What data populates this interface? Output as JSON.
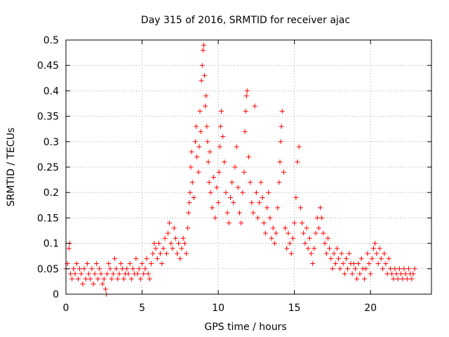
{
  "chart_data": {
    "type": "scatter",
    "title": "Day 315 of 2016, SRMTID for receiver ajac",
    "xlabel": "GPS time / hours",
    "ylabel": "SRMTID / TECUs",
    "xlim": [
      0,
      24
    ],
    "ylim": [
      0,
      0.5
    ],
    "x_ticks": [
      0,
      5,
      10,
      15,
      20
    ],
    "x_tick_labels": [
      "0",
      "5",
      "10",
      "15",
      "20"
    ],
    "y_ticks": [
      0,
      0.05,
      0.1,
      0.15,
      0.2,
      0.25,
      0.3,
      0.35,
      0.4,
      0.45,
      0.5
    ],
    "y_tick_labels": [
      "0",
      "0.05",
      "0.1",
      "0.15",
      "0.2",
      "0.25",
      "0.3",
      "0.35",
      "0.4",
      "0.45",
      "0.5"
    ],
    "grid": true,
    "marker": "+",
    "marker_color": "#ff0000",
    "series": [
      {
        "name": "SRMTID",
        "points": [
          [
            0.0,
            0.05
          ],
          [
            0.1,
            0.06
          ],
          [
            0.2,
            0.09
          ],
          [
            0.25,
            0.1
          ],
          [
            0.3,
            0.04
          ],
          [
            0.4,
            0.03
          ],
          [
            0.5,
            0.05
          ],
          [
            0.6,
            0.04
          ],
          [
            0.7,
            0.06
          ],
          [
            0.8,
            0.03
          ],
          [
            0.9,
            0.05
          ],
          [
            1.0,
            0.04
          ],
          [
            1.1,
            0.02
          ],
          [
            1.2,
            0.05
          ],
          [
            1.3,
            0.03
          ],
          [
            1.4,
            0.06
          ],
          [
            1.5,
            0.04
          ],
          [
            1.6,
            0.03
          ],
          [
            1.7,
            0.05
          ],
          [
            1.8,
            0.02
          ],
          [
            1.9,
            0.04
          ],
          [
            2.0,
            0.06
          ],
          [
            2.1,
            0.03
          ],
          [
            2.2,
            0.05
          ],
          [
            2.3,
            0.04
          ],
          [
            2.4,
            0.02
          ],
          [
            2.5,
            0.03
          ],
          [
            2.6,
            0.01
          ],
          [
            2.65,
            0.0
          ],
          [
            2.7,
            0.04
          ],
          [
            2.8,
            0.06
          ],
          [
            2.9,
            0.05
          ],
          [
            3.0,
            0.03
          ],
          [
            3.1,
            0.04
          ],
          [
            3.2,
            0.07
          ],
          [
            3.3,
            0.05
          ],
          [
            3.4,
            0.03
          ],
          [
            3.5,
            0.04
          ],
          [
            3.6,
            0.06
          ],
          [
            3.7,
            0.05
          ],
          [
            3.8,
            0.03
          ],
          [
            3.9,
            0.04
          ],
          [
            4.0,
            0.05
          ],
          [
            4.1,
            0.04
          ],
          [
            4.2,
            0.06
          ],
          [
            4.3,
            0.03
          ],
          [
            4.4,
            0.05
          ],
          [
            4.5,
            0.04
          ],
          [
            4.6,
            0.07
          ],
          [
            4.7,
            0.04
          ],
          [
            4.8,
            0.05
          ],
          [
            4.9,
            0.03
          ],
          [
            5.0,
            0.06
          ],
          [
            5.1,
            0.04
          ],
          [
            5.2,
            0.05
          ],
          [
            5.3,
            0.07
          ],
          [
            5.4,
            0.04
          ],
          [
            5.5,
            0.03
          ],
          [
            5.6,
            0.06
          ],
          [
            5.7,
            0.08
          ],
          [
            5.8,
            0.1
          ],
          [
            5.9,
            0.09
          ],
          [
            6.0,
            0.07
          ],
          [
            6.1,
            0.1
          ],
          [
            6.2,
            0.08
          ],
          [
            6.3,
            0.06
          ],
          [
            6.4,
            0.09
          ],
          [
            6.5,
            0.11
          ],
          [
            6.6,
            0.08
          ],
          [
            6.7,
            0.12
          ],
          [
            6.8,
            0.14
          ],
          [
            6.9,
            0.1
          ],
          [
            7.0,
            0.09
          ],
          [
            7.1,
            0.13
          ],
          [
            7.2,
            0.11
          ],
          [
            7.3,
            0.08
          ],
          [
            7.4,
            0.1
          ],
          [
            7.5,
            0.07
          ],
          [
            7.6,
            0.09
          ],
          [
            7.7,
            0.11
          ],
          [
            7.8,
            0.1
          ],
          [
            7.9,
            0.08
          ],
          [
            8.0,
            0.13
          ],
          [
            8.05,
            0.16
          ],
          [
            8.1,
            0.18
          ],
          [
            8.15,
            0.2
          ],
          [
            8.2,
            0.25
          ],
          [
            8.25,
            0.28
          ],
          [
            8.3,
            0.22
          ],
          [
            8.4,
            0.19
          ],
          [
            8.5,
            0.3
          ],
          [
            8.55,
            0.33
          ],
          [
            8.6,
            0.27
          ],
          [
            8.7,
            0.24
          ],
          [
            8.75,
            0.29
          ],
          [
            8.8,
            0.36
          ],
          [
            8.85,
            0.32
          ],
          [
            8.9,
            0.42
          ],
          [
            8.95,
            0.45
          ],
          [
            9.0,
            0.48
          ],
          [
            9.05,
            0.49
          ],
          [
            9.1,
            0.43
          ],
          [
            9.15,
            0.37
          ],
          [
            9.2,
            0.39
          ],
          [
            9.25,
            0.33
          ],
          [
            9.3,
            0.3
          ],
          [
            9.35,
            0.26
          ],
          [
            9.4,
            0.22
          ],
          [
            9.45,
            0.28
          ],
          [
            9.5,
            0.2
          ],
          [
            9.6,
            0.17
          ],
          [
            9.7,
            0.23
          ],
          [
            9.8,
            0.15
          ],
          [
            9.9,
            0.21
          ],
          [
            10.0,
            0.18
          ],
          [
            10.05,
            0.24
          ],
          [
            10.1,
            0.29
          ],
          [
            10.15,
            0.33
          ],
          [
            10.2,
            0.36
          ],
          [
            10.3,
            0.31
          ],
          [
            10.4,
            0.26
          ],
          [
            10.5,
            0.2
          ],
          [
            10.6,
            0.16
          ],
          [
            10.7,
            0.14
          ],
          [
            10.8,
            0.19
          ],
          [
            10.9,
            0.22
          ],
          [
            11.0,
            0.18
          ],
          [
            11.1,
            0.25
          ],
          [
            11.2,
            0.29
          ],
          [
            11.3,
            0.21
          ],
          [
            11.4,
            0.16
          ],
          [
            11.5,
            0.14
          ],
          [
            11.6,
            0.2
          ],
          [
            11.7,
            0.24
          ],
          [
            11.75,
            0.32
          ],
          [
            11.8,
            0.36
          ],
          [
            11.85,
            0.39
          ],
          [
            11.9,
            0.4
          ],
          [
            12.0,
            0.27
          ],
          [
            12.1,
            0.22
          ],
          [
            12.2,
            0.18
          ],
          [
            12.3,
            0.16
          ],
          [
            12.4,
            0.37
          ],
          [
            12.5,
            0.2
          ],
          [
            12.6,
            0.15
          ],
          [
            12.7,
            0.18
          ],
          [
            12.8,
            0.22
          ],
          [
            12.9,
            0.19
          ],
          [
            13.0,
            0.14
          ],
          [
            13.1,
            0.12
          ],
          [
            13.2,
            0.17
          ],
          [
            13.3,
            0.2
          ],
          [
            13.4,
            0.15
          ],
          [
            13.5,
            0.11
          ],
          [
            13.6,
            0.13
          ],
          [
            13.7,
            0.1
          ],
          [
            13.8,
            0.12
          ],
          [
            13.9,
            0.17
          ],
          [
            14.0,
            0.22
          ],
          [
            14.05,
            0.26
          ],
          [
            14.1,
            0.3
          ],
          [
            14.15,
            0.33
          ],
          [
            14.2,
            0.36
          ],
          [
            14.3,
            0.24
          ],
          [
            14.4,
            0.13
          ],
          [
            14.5,
            0.09
          ],
          [
            14.6,
            0.12
          ],
          [
            14.7,
            0.1
          ],
          [
            14.8,
            0.08
          ],
          [
            14.9,
            0.11
          ],
          [
            15.0,
            0.14
          ],
          [
            15.1,
            0.19
          ],
          [
            15.2,
            0.26
          ],
          [
            15.3,
            0.29
          ],
          [
            15.4,
            0.17
          ],
          [
            15.5,
            0.14
          ],
          [
            15.6,
            0.12
          ],
          [
            15.7,
            0.1
          ],
          [
            15.8,
            0.13
          ],
          [
            15.9,
            0.09
          ],
          [
            16.0,
            0.11
          ],
          [
            16.1,
            0.08
          ],
          [
            16.2,
            0.06
          ],
          [
            16.3,
            0.09
          ],
          [
            16.4,
            0.12
          ],
          [
            16.5,
            0.15
          ],
          [
            16.6,
            0.13
          ],
          [
            16.7,
            0.17
          ],
          [
            16.8,
            0.15
          ],
          [
            16.9,
            0.12
          ],
          [
            17.0,
            0.1
          ],
          [
            17.1,
            0.08
          ],
          [
            17.2,
            0.11
          ],
          [
            17.3,
            0.09
          ],
          [
            17.4,
            0.07
          ],
          [
            17.5,
            0.05
          ],
          [
            17.6,
            0.08
          ],
          [
            17.7,
            0.06
          ],
          [
            17.8,
            0.09
          ],
          [
            17.9,
            0.07
          ],
          [
            18.0,
            0.05
          ],
          [
            18.1,
            0.08
          ],
          [
            18.2,
            0.06
          ],
          [
            18.3,
            0.04
          ],
          [
            18.4,
            0.07
          ],
          [
            18.5,
            0.05
          ],
          [
            18.6,
            0.08
          ],
          [
            18.7,
            0.06
          ],
          [
            18.8,
            0.04
          ],
          [
            18.9,
            0.06
          ],
          [
            19.0,
            0.05
          ],
          [
            19.1,
            0.03
          ],
          [
            19.2,
            0.06
          ],
          [
            19.3,
            0.04
          ],
          [
            19.4,
            0.07
          ],
          [
            19.5,
            0.05
          ],
          [
            19.6,
            0.03
          ],
          [
            19.7,
            0.05
          ],
          [
            19.8,
            0.08
          ],
          [
            19.9,
            0.06
          ],
          [
            20.0,
            0.04
          ],
          [
            20.1,
            0.07
          ],
          [
            20.2,
            0.09
          ],
          [
            20.3,
            0.1
          ],
          [
            20.4,
            0.08
          ],
          [
            20.5,
            0.06
          ],
          [
            20.6,
            0.09
          ],
          [
            20.7,
            0.07
          ],
          [
            20.8,
            0.05
          ],
          [
            20.9,
            0.08
          ],
          [
            21.0,
            0.06
          ],
          [
            21.1,
            0.04
          ],
          [
            21.2,
            0.07
          ],
          [
            21.3,
            0.05
          ],
          [
            21.4,
            0.04
          ],
          [
            21.5,
            0.03
          ],
          [
            21.6,
            0.05
          ],
          [
            21.7,
            0.04
          ],
          [
            21.8,
            0.03
          ],
          [
            21.9,
            0.05
          ],
          [
            22.0,
            0.04
          ],
          [
            22.1,
            0.03
          ],
          [
            22.2,
            0.05
          ],
          [
            22.3,
            0.04
          ],
          [
            22.4,
            0.03
          ],
          [
            22.5,
            0.05
          ],
          [
            22.6,
            0.04
          ],
          [
            22.7,
            0.03
          ],
          [
            22.8,
            0.04
          ],
          [
            22.9,
            0.05
          ]
        ]
      }
    ]
  }
}
